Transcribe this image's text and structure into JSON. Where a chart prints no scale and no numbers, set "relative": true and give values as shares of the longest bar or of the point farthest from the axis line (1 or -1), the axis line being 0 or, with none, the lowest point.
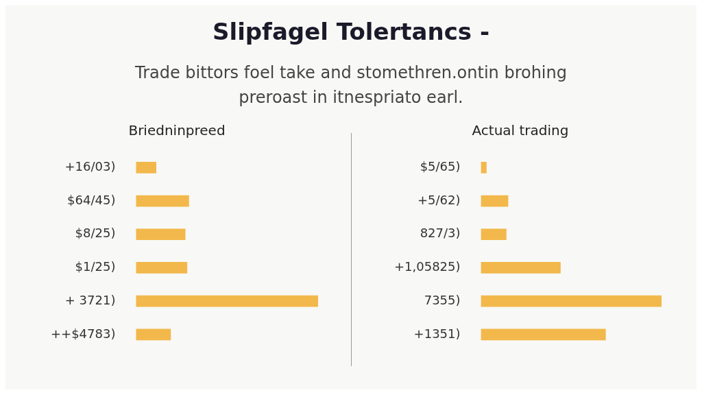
{
  "chart_data": [
    {
      "type": "other",
      "title": "Slipfagel Tolertancs -",
      "subtitle": "Trade bittors foel take and stomethren.ontin brohing preroast in itnespriato earl."
    },
    {
      "type": "bar",
      "orientation": "horizontal",
      "relative": true,
      "title": "Briedninpreed",
      "categories": [
        "+16/03)",
        "$64/45)",
        "$8/25)",
        "$1/25)",
        "+ 3721)",
        "++$4783)"
      ],
      "values": [
        0.11,
        0.29,
        0.27,
        0.28,
        1,
        0.19
      ],
      "color": "#f2b84b"
    },
    {
      "type": "bar",
      "orientation": "horizontal",
      "relative": true,
      "title": "Actual trading",
      "categories": [
        "$5/65)",
        "+5/62)",
        "827/3)",
        "+1,05825)",
        "7355)",
        "+1351)"
      ],
      "values": [
        0.03,
        0.15,
        0.14,
        0.44,
        1,
        0.69
      ],
      "color": "#f2b84b"
    }
  ]
}
